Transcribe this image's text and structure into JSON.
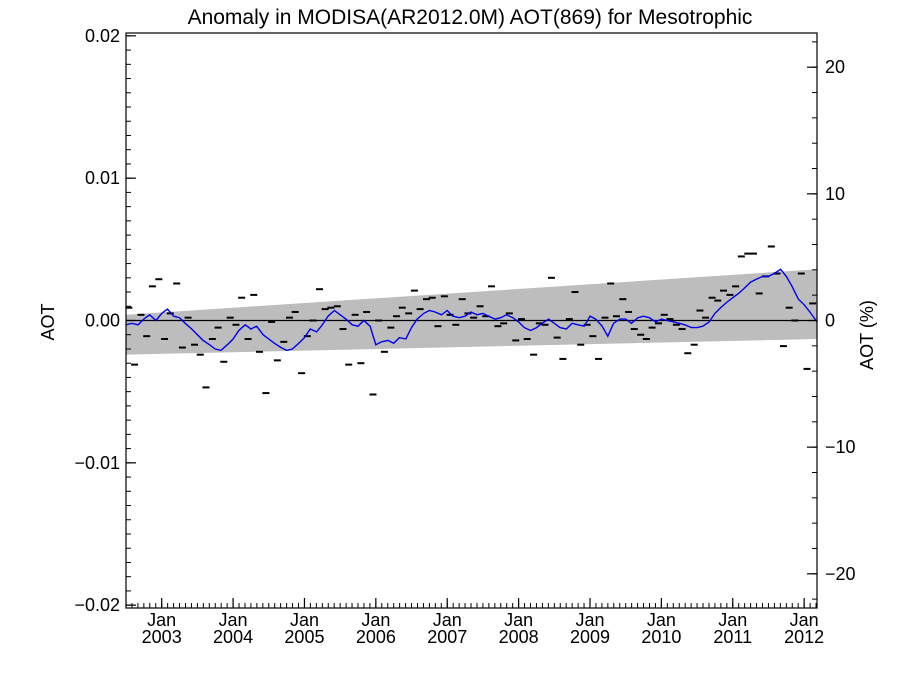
{
  "chart_data": {
    "type": "line",
    "title": "Anomaly in MODISA(AR2012.0M) AOT(869) for Mesotrophic",
    "ylabel": "AOT",
    "ylabel_right": "AOT (%)",
    "xlim": [
      2002.5,
      2012.18
    ],
    "ylim": [
      -0.0202,
      0.0202
    ],
    "ylim_right": [
      -22.7,
      22.7
    ],
    "y_ticks": [
      {
        "value": 0.02,
        "label": "0.02"
      },
      {
        "value": 0.01,
        "label": "0.01"
      },
      {
        "value": 0.0,
        "label": "0.00"
      },
      {
        "value": -0.01,
        "label": "−0.01"
      },
      {
        "value": -0.02,
        "label": "−0.02"
      }
    ],
    "y_ticks_right": [
      {
        "value": 20,
        "label": "20"
      },
      {
        "value": 10,
        "label": "10"
      },
      {
        "value": 0,
        "label": "0"
      },
      {
        "value": -10,
        "label": "−10"
      },
      {
        "value": -20,
        "label": "−20"
      }
    ],
    "x_ticks": [
      {
        "value": 2003.0,
        "month": "Jan",
        "year": "2003"
      },
      {
        "value": 2004.0,
        "month": "Jan",
        "year": "2004"
      },
      {
        "value": 2005.0,
        "month": "Jan",
        "year": "2005"
      },
      {
        "value": 2006.0,
        "month": "Jan",
        "year": "2006"
      },
      {
        "value": 2007.0,
        "month": "Jan",
        "year": "2007"
      },
      {
        "value": 2008.0,
        "month": "Jan",
        "year": "2008"
      },
      {
        "value": 2009.0,
        "month": "Jan",
        "year": "2009"
      },
      {
        "value": 2010.0,
        "month": "Jan",
        "year": "2010"
      },
      {
        "value": 2011.0,
        "month": "Jan",
        "year": "2011"
      },
      {
        "value": 2012.0,
        "month": "Jan",
        "year": "2012"
      }
    ],
    "confidence_band": {
      "x": [
        2002.5,
        2012.18
      ],
      "upper": [
        0.0004,
        0.0036
      ],
      "lower": [
        -0.0024,
        -0.0013
      ]
    },
    "monthly_anomalies": {
      "x": [
        2002.54,
        2002.62,
        2002.71,
        2002.79,
        2002.87,
        2002.96,
        2003.04,
        2003.12,
        2003.21,
        2003.29,
        2003.37,
        2003.46,
        2003.54,
        2003.62,
        2003.71,
        2003.79,
        2003.87,
        2003.96,
        2004.04,
        2004.12,
        2004.21,
        2004.29,
        2004.37,
        2004.46,
        2004.54,
        2004.62,
        2004.71,
        2004.79,
        2004.87,
        2004.96,
        2005.04,
        2005.12,
        2005.21,
        2005.29,
        2005.37,
        2005.46,
        2005.54,
        2005.62,
        2005.71,
        2005.79,
        2005.87,
        2005.96,
        2006.04,
        2006.12,
        2006.21,
        2006.29,
        2006.37,
        2006.46,
        2006.54,
        2006.62,
        2006.71,
        2006.79,
        2006.87,
        2006.96,
        2007.04,
        2007.12,
        2007.21,
        2007.29,
        2007.37,
        2007.46,
        2007.54,
        2007.62,
        2007.71,
        2007.79,
        2007.87,
        2007.96,
        2008.04,
        2008.12,
        2008.21,
        2008.29,
        2008.37,
        2008.46,
        2008.54,
        2008.62,
        2008.71,
        2008.79,
        2008.87,
        2008.96,
        2009.04,
        2009.12,
        2009.21,
        2009.29,
        2009.37,
        2009.46,
        2009.54,
        2009.62,
        2009.71,
        2009.79,
        2009.87,
        2009.96,
        2010.04,
        2010.12,
        2010.21,
        2010.29,
        2010.37,
        2010.46,
        2010.54,
        2010.62,
        2010.71,
        2010.79,
        2010.87,
        2010.96,
        2011.04,
        2011.12,
        2011.21,
        2011.29,
        2011.37,
        2011.46,
        2011.54,
        2011.62,
        2011.71,
        2011.79,
        2011.87,
        2011.96,
        2012.04,
        2012.12
      ],
      "y": [
        0.0009,
        -0.0031,
        0.0004,
        -0.0011,
        0.0024,
        0.0029,
        -0.0013,
        0.0005,
        0.0026,
        -0.0019,
        0.0002,
        -0.0017,
        -0.0024,
        -0.0047,
        -0.0013,
        -0.0005,
        -0.0029,
        0.0002,
        -0.0003,
        0.0016,
        -0.0013,
        0.0018,
        -0.0022,
        -0.0051,
        -0.0001,
        -0.0028,
        -0.0015,
        0.0002,
        0.0006,
        -0.0037,
        -0.0011,
        0.0,
        0.0022,
        0.0008,
        0.0009,
        0.001,
        -0.0006,
        -0.0031,
        0.0004,
        -0.003,
        0.0006,
        -0.0052,
        0.0,
        -0.0022,
        -0.0005,
        0.0003,
        0.0009,
        0.0005,
        0.0021,
        0.0008,
        0.0015,
        0.0016,
        -0.0004,
        0.0017,
        0.0004,
        -0.0003,
        0.0015,
        0.0005,
        0.0002,
        0.001,
        0.0003,
        0.0024,
        -0.0004,
        -0.0002,
        0.0005,
        -0.0014,
        0.0001,
        -0.0013,
        -0.0024,
        -0.0002,
        -0.0003,
        0.003,
        -0.0012,
        -0.0027,
        0.0001,
        0.002,
        -0.0017,
        -0.0003,
        -0.0011,
        -0.0027,
        0.0002,
        0.0026,
        0.0003,
        0.0015,
        0.0006,
        -0.0006,
        -0.001,
        -0.0013,
        -0.0005,
        -0.0002,
        0.0004,
        0.0001,
        -0.0003,
        -0.0006,
        -0.0023,
        -0.0017,
        0.0007,
        0.0002,
        0.0016,
        0.0014,
        0.0021,
        0.0018,
        0.0024,
        0.0045,
        0.0047,
        0.0047,
        0.0019,
        0.0031,
        0.0052,
        0.0033,
        -0.0018,
        0.0009,
        0.0,
        0.0033,
        -0.0034,
        0.0012
      ]
    },
    "series": [
      {
        "color": "#0000ee",
        "x": [
          2002.5,
          2002.58,
          2002.67,
          2002.75,
          2002.83,
          2002.92,
          2003.0,
          2003.08,
          2003.17,
          2003.25,
          2003.33,
          2003.42,
          2003.5,
          2003.58,
          2003.67,
          2003.75,
          2003.83,
          2003.92,
          2004.0,
          2004.08,
          2004.17,
          2004.25,
          2004.33,
          2004.42,
          2004.5,
          2004.58,
          2004.67,
          2004.75,
          2004.83,
          2004.92,
          2005.0,
          2005.08,
          2005.17,
          2005.25,
          2005.33,
          2005.42,
          2005.5,
          2005.58,
          2005.67,
          2005.75,
          2005.83,
          2005.92,
          2006.0,
          2006.08,
          2006.17,
          2006.25,
          2006.33,
          2006.42,
          2006.5,
          2006.58,
          2006.67,
          2006.75,
          2006.83,
          2006.92,
          2007.0,
          2007.08,
          2007.17,
          2007.25,
          2007.33,
          2007.42,
          2007.5,
          2007.58,
          2007.67,
          2007.75,
          2007.83,
          2007.92,
          2008.0,
          2008.08,
          2008.17,
          2008.25,
          2008.33,
          2008.42,
          2008.5,
          2008.58,
          2008.67,
          2008.75,
          2008.83,
          2008.92,
          2009.0,
          2009.08,
          2009.17,
          2009.25,
          2009.33,
          2009.42,
          2009.5,
          2009.58,
          2009.67,
          2009.75,
          2009.83,
          2009.92,
          2010.0,
          2010.08,
          2010.17,
          2010.25,
          2010.33,
          2010.42,
          2010.5,
          2010.58,
          2010.67,
          2010.75,
          2010.83,
          2010.92,
          2011.0,
          2011.08,
          2011.17,
          2011.25,
          2011.33,
          2011.42,
          2011.5,
          2011.58,
          2011.67,
          2011.75,
          2011.83,
          2011.92,
          2012.0,
          2012.08,
          2012.18
        ],
        "values": [
          -0.0003,
          -0.0002,
          -0.0003,
          0.0001,
          0.0004,
          0.0,
          0.0005,
          0.0008,
          0.0003,
          0.0002,
          -0.0002,
          -0.0006,
          -0.001,
          -0.0014,
          -0.0017,
          -0.002,
          -0.0021,
          -0.0017,
          -0.0013,
          -0.0007,
          -0.0003,
          -0.0006,
          -0.0004,
          -0.001,
          -0.0013,
          -0.0016,
          -0.0019,
          -0.0021,
          -0.002,
          -0.0016,
          -0.0012,
          -0.0006,
          -0.0008,
          -0.0003,
          0.0003,
          0.0007,
          0.0004,
          0.0001,
          -0.0003,
          -0.0004,
          0.0,
          -0.0004,
          -0.0017,
          -0.0015,
          -0.0014,
          -0.0016,
          -0.0012,
          -0.0013,
          -0.0005,
          0.0001,
          0.0005,
          0.0007,
          0.0006,
          0.0004,
          0.0007,
          0.0003,
          0.0002,
          0.0003,
          0.0006,
          0.0004,
          0.0005,
          0.0003,
          0.0001,
          0.0002,
          0.0004,
          0.0002,
          -0.0001,
          -0.0005,
          -0.0007,
          -0.0005,
          -0.0002,
          0.0001,
          -0.0002,
          -0.0005,
          -0.0006,
          -0.0002,
          -0.0003,
          -0.0004,
          0.0003,
          0.0001,
          -0.0004,
          -0.0011,
          -0.0002,
          0.0001,
          0.0001,
          -0.0002,
          0.0002,
          0.0003,
          0.0002,
          -0.0001,
          0.0001,
          0.0,
          -0.0001,
          -0.0002,
          -0.0003,
          -0.0005,
          -0.0005,
          -0.0004,
          -0.0001,
          0.0005,
          0.0009,
          0.0013,
          0.0016,
          0.0019,
          0.0023,
          0.0027,
          0.0029,
          0.0031,
          0.0031,
          0.0033,
          0.0036,
          0.0031,
          0.0024,
          0.0015,
          0.0011,
          0.0006,
          -0.0001
        ]
      }
    ],
    "reference_line": {
      "y": 0.0,
      "color": "#000000"
    },
    "band_color": "#bdbdbd",
    "grid": false
  }
}
